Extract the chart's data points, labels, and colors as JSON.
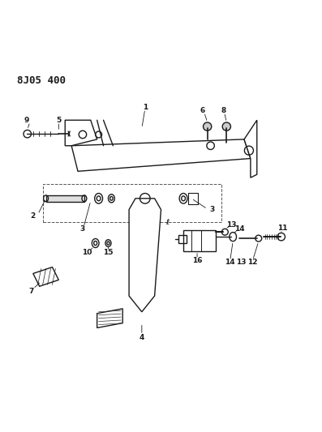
{
  "title": "8J05 400",
  "bg_color": "#ffffff",
  "line_color": "#1a1a1a",
  "fig_width": 3.97,
  "fig_height": 5.33,
  "dpi": 100
}
